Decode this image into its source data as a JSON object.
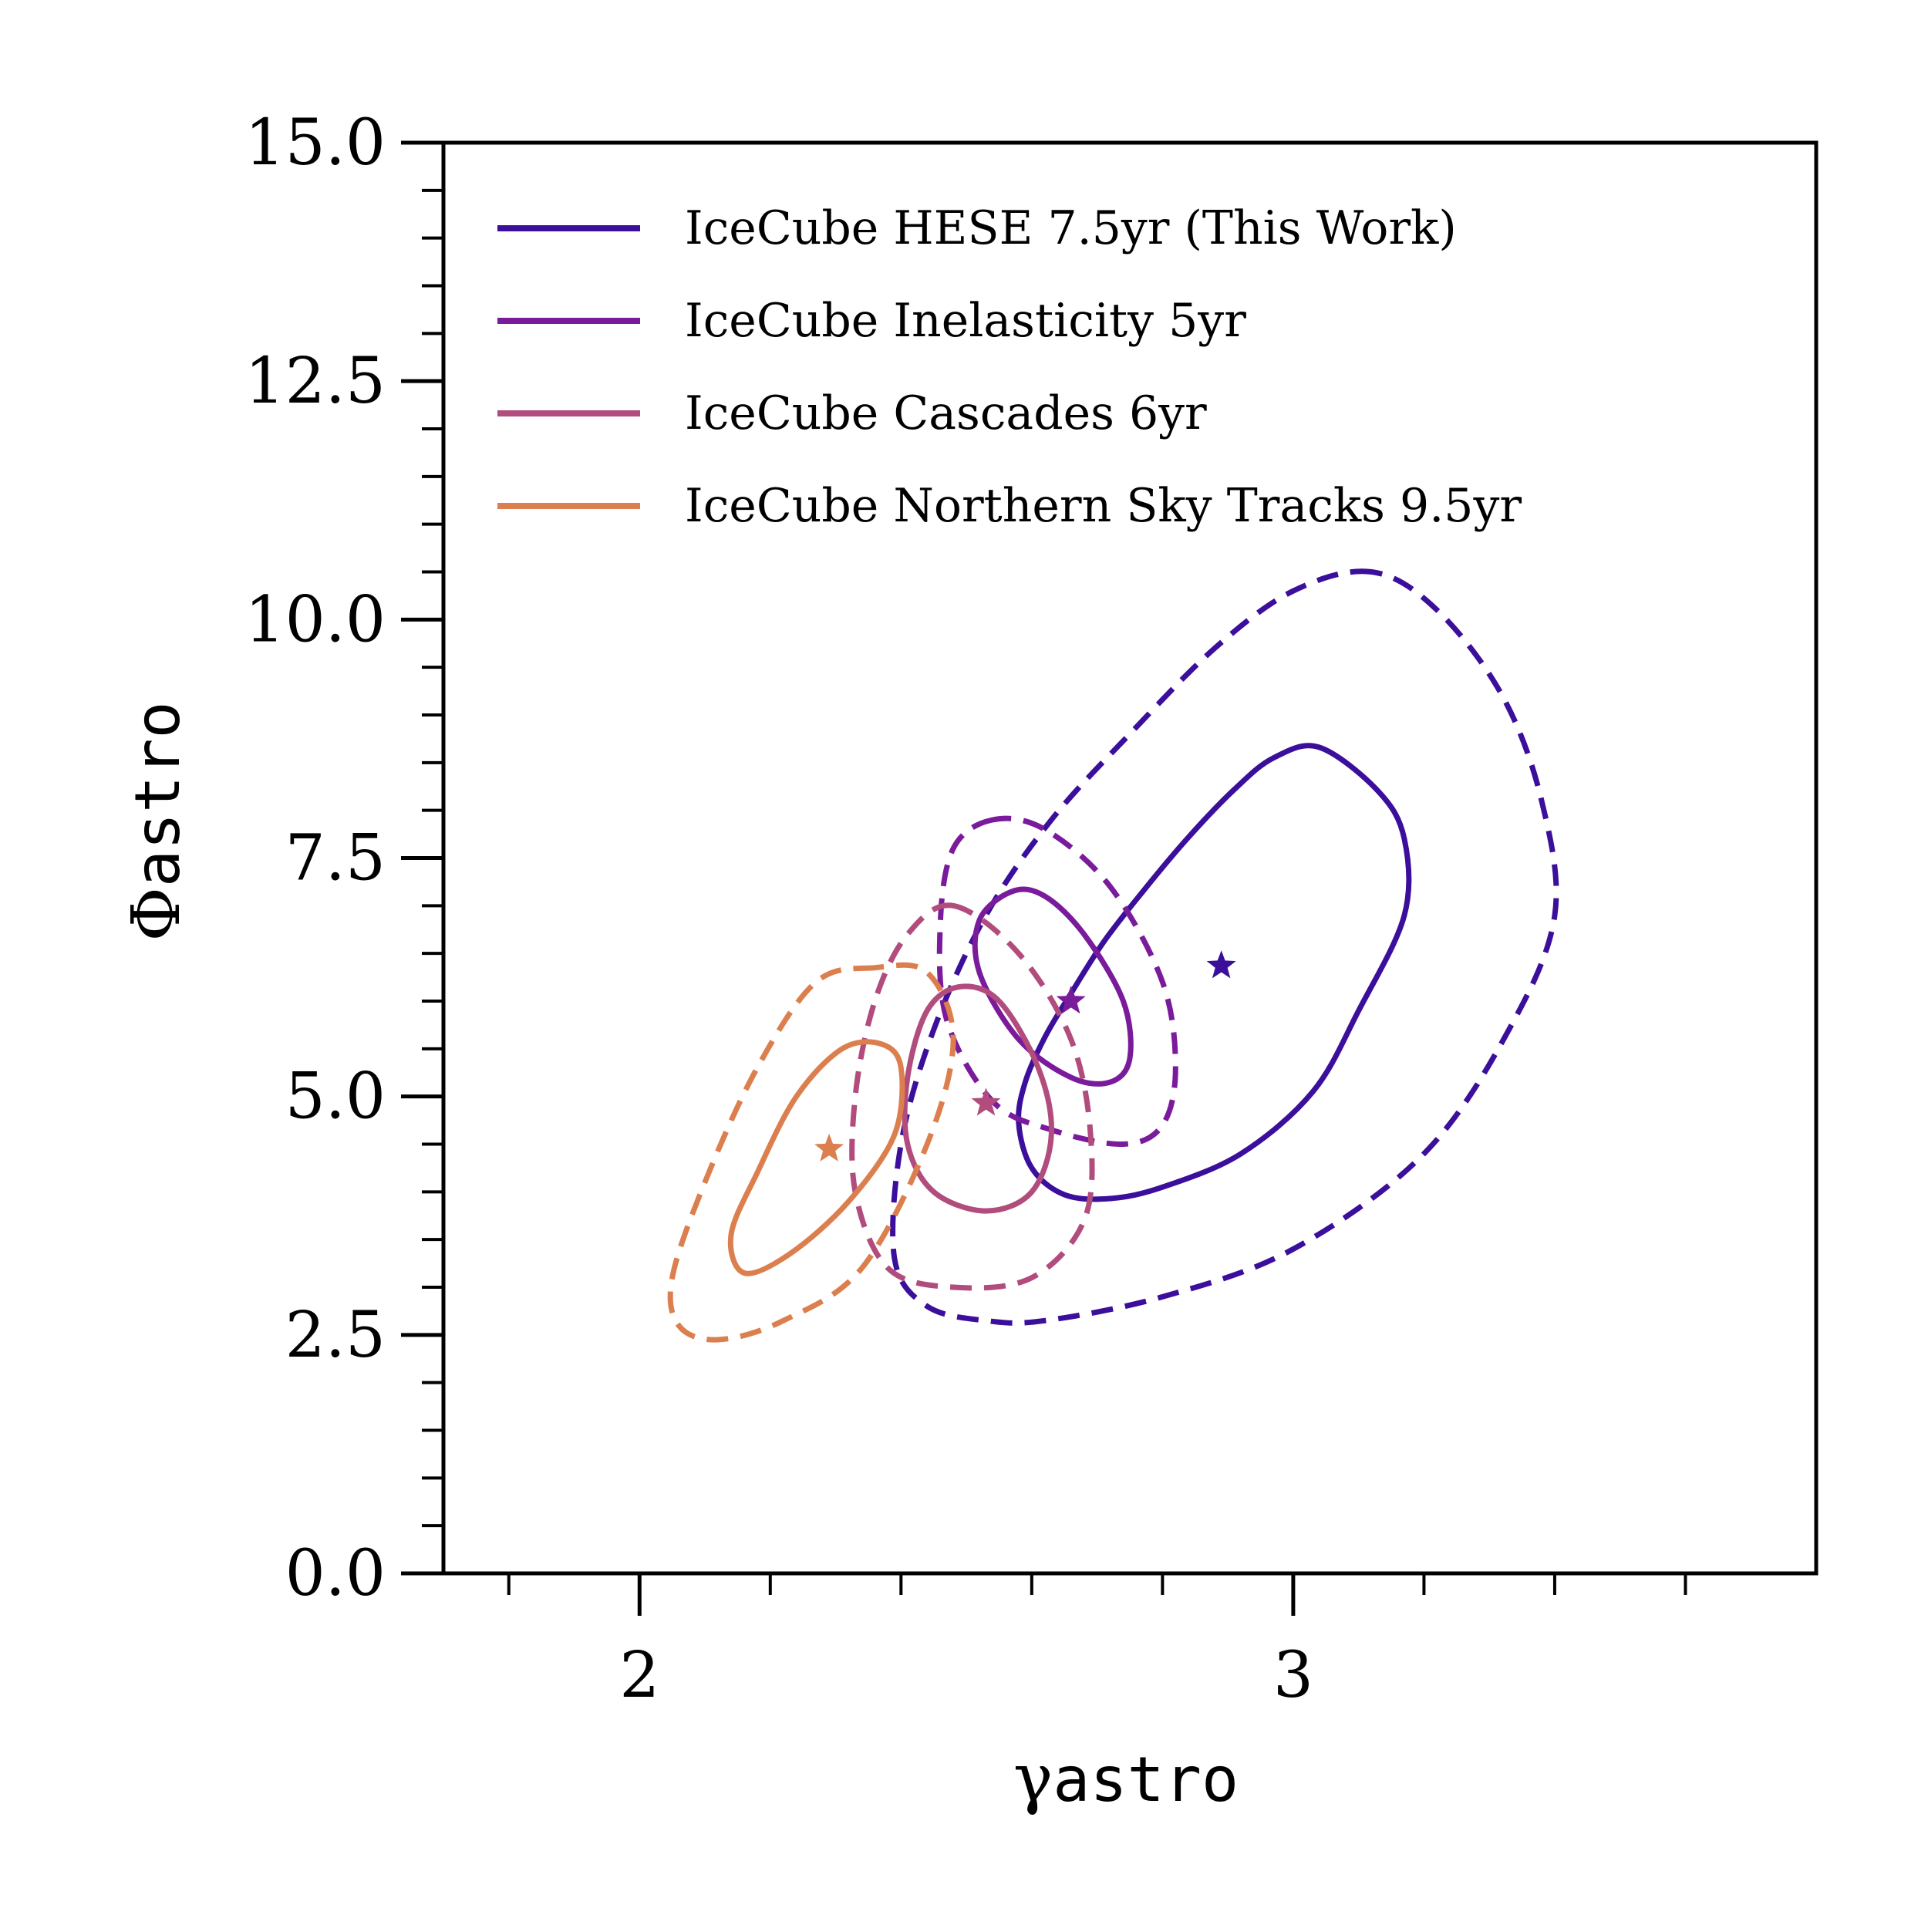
{
  "chart_data": {
    "type": "contour",
    "xlabel": {
      "symbol": "γ",
      "subscript": "astro"
    },
    "ylabel": {
      "symbol": "Φ",
      "subscript": "astro"
    },
    "xlim": [
      1.7,
      3.8
    ],
    "ylim": [
      0.0,
      15.0
    ],
    "xticks_major": [
      2,
      3
    ],
    "xtick_labels": [
      "2",
      "3"
    ],
    "xticks_minor": [
      1.8,
      2.2,
      2.4,
      2.6,
      2.8,
      3.2,
      3.4,
      3.6
    ],
    "yticks_major": [
      0.0,
      2.5,
      5.0,
      7.5,
      10.0,
      12.5,
      15.0
    ],
    "ytick_labels": [
      "0.0",
      "2.5",
      "5.0",
      "7.5",
      "10.0",
      "12.5",
      "15.0"
    ],
    "ytick_minor_step": 0.5,
    "legend_position": "upper-left",
    "series": [
      {
        "name": "IceCube HESE 7.5yr (This Work)",
        "color": "#3b0f9b",
        "best_fit": [
          2.89,
          6.37
        ],
        "contour_solid": [
          [
            3.04,
            8.66
          ],
          [
            2.97,
            8.55
          ],
          [
            2.91,
            8.22
          ],
          [
            2.84,
            7.72
          ],
          [
            2.77,
            7.15
          ],
          [
            2.71,
            6.62
          ],
          [
            2.66,
            6.08
          ],
          [
            2.62,
            5.62
          ],
          [
            2.59,
            5.15
          ],
          [
            2.58,
            4.72
          ],
          [
            2.6,
            4.25
          ],
          [
            2.65,
            3.97
          ],
          [
            2.72,
            3.93
          ],
          [
            2.8,
            4.05
          ],
          [
            2.92,
            4.4
          ],
          [
            3.03,
            5.05
          ],
          [
            3.1,
            5.9
          ],
          [
            3.17,
            6.9
          ],
          [
            3.17,
            7.7
          ],
          [
            3.13,
            8.2
          ]
        ],
        "contour_dashed": [
          [
            3.12,
            10.5
          ],
          [
            3.0,
            10.3
          ],
          [
            2.88,
            9.7
          ],
          [
            2.75,
            8.8
          ],
          [
            2.63,
            7.9
          ],
          [
            2.53,
            6.9
          ],
          [
            2.45,
            5.7
          ],
          [
            2.4,
            4.5
          ],
          [
            2.39,
            3.3
          ],
          [
            2.44,
            2.8
          ],
          [
            2.53,
            2.65
          ],
          [
            2.62,
            2.65
          ],
          [
            2.8,
            2.9
          ],
          [
            3.0,
            3.4
          ],
          [
            3.2,
            4.4
          ],
          [
            3.33,
            5.7
          ],
          [
            3.4,
            6.9
          ],
          [
            3.38,
            8.1
          ],
          [
            3.32,
            9.2
          ],
          [
            3.22,
            10.1
          ]
        ]
      },
      {
        "name": "IceCube Inelasticity 5yr",
        "color": "#7a1b9c",
        "best_fit": [
          2.66,
          6.0
        ],
        "contour_solid": [
          [
            2.57,
            7.15
          ],
          [
            2.52,
            6.85
          ],
          [
            2.52,
            6.3
          ],
          [
            2.58,
            5.6
          ],
          [
            2.66,
            5.2
          ],
          [
            2.72,
            5.15
          ],
          [
            2.75,
            5.4
          ],
          [
            2.74,
            6.0
          ],
          [
            2.68,
            6.7
          ],
          [
            2.62,
            7.1
          ]
        ],
        "contour_dashed": [
          [
            2.54,
            7.9
          ],
          [
            2.48,
            7.6
          ],
          [
            2.46,
            6.8
          ],
          [
            2.47,
            5.8
          ],
          [
            2.54,
            4.95
          ],
          [
            2.63,
            4.65
          ],
          [
            2.74,
            4.5
          ],
          [
            2.8,
            4.7
          ],
          [
            2.82,
            5.3
          ],
          [
            2.8,
            6.2
          ],
          [
            2.72,
            7.2
          ],
          [
            2.62,
            7.8
          ]
        ]
      },
      {
        "name": "IceCube Cascades 6yr",
        "color": "#b14c7d",
        "best_fit": [
          2.53,
          4.93
        ],
        "contour_solid": [
          [
            2.49,
            6.15
          ],
          [
            2.44,
            5.9
          ],
          [
            2.41,
            5.2
          ],
          [
            2.41,
            4.5
          ],
          [
            2.45,
            4.0
          ],
          [
            2.53,
            3.8
          ],
          [
            2.6,
            4.0
          ],
          [
            2.63,
            4.6
          ],
          [
            2.61,
            5.3
          ],
          [
            2.55,
            6.0
          ]
        ],
        "contour_dashed": [
          [
            2.48,
            7.0
          ],
          [
            2.41,
            6.7
          ],
          [
            2.36,
            6.0
          ],
          [
            2.33,
            5.0
          ],
          [
            2.33,
            4.0
          ],
          [
            2.38,
            3.2
          ],
          [
            2.48,
            3.0
          ],
          [
            2.6,
            3.1
          ],
          [
            2.68,
            3.7
          ],
          [
            2.69,
            4.6
          ],
          [
            2.66,
            5.6
          ],
          [
            2.58,
            6.5
          ]
        ]
      },
      {
        "name": "IceCube Northern Sky Tracks 9.5yr",
        "color": "#dc7f4f",
        "best_fit": [
          2.29,
          4.45
        ],
        "contour_solid": [
          [
            2.37,
            5.55
          ],
          [
            2.31,
            5.5
          ],
          [
            2.24,
            5.0
          ],
          [
            2.18,
            4.2
          ],
          [
            2.14,
            3.55
          ],
          [
            2.16,
            3.15
          ],
          [
            2.23,
            3.35
          ],
          [
            2.32,
            3.9
          ],
          [
            2.39,
            4.6
          ],
          [
            2.4,
            5.3
          ]
        ],
        "contour_dashed": [
          [
            2.36,
            6.35
          ],
          [
            2.27,
            6.2
          ],
          [
            2.18,
            5.3
          ],
          [
            2.1,
            4.1
          ],
          [
            2.05,
            3.1
          ],
          [
            2.06,
            2.6
          ],
          [
            2.12,
            2.45
          ],
          [
            2.22,
            2.65
          ],
          [
            2.34,
            3.2
          ],
          [
            2.44,
            4.5
          ],
          [
            2.48,
            5.6
          ],
          [
            2.44,
            6.3
          ]
        ]
      }
    ]
  }
}
